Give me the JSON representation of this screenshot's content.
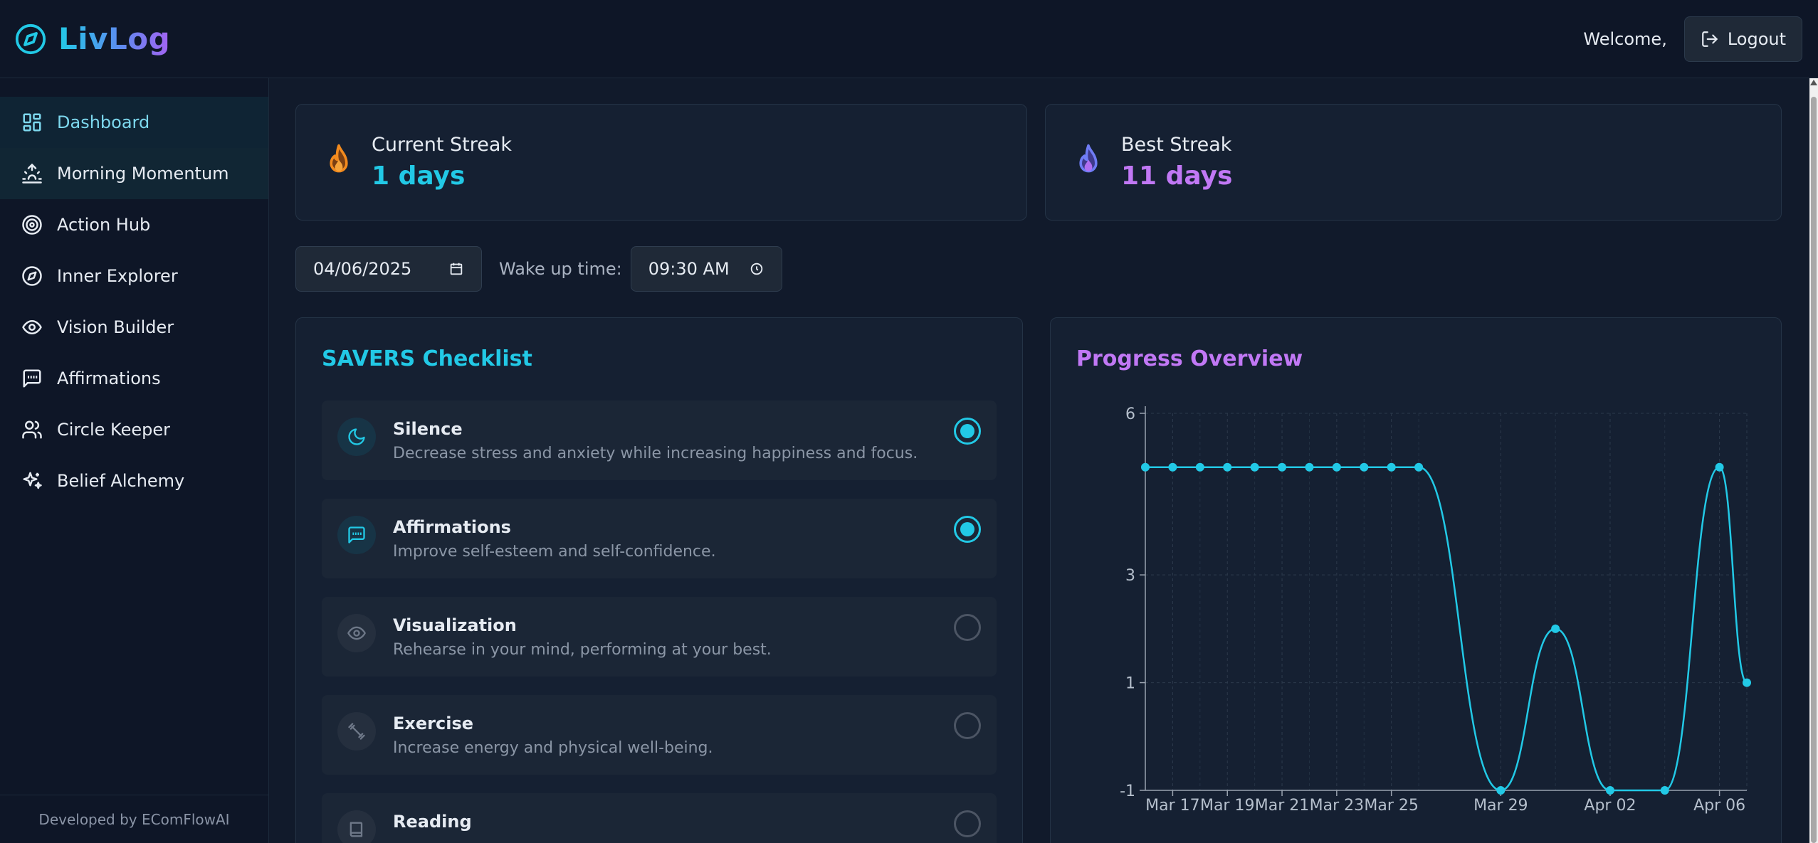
{
  "header": {
    "app_name": "LivLog",
    "welcome": "Welcome,",
    "logout_label": "Logout",
    "logo_icon": "compass-icon",
    "logout_icon": "logout-icon"
  },
  "sidebar": {
    "items": [
      {
        "label": "Dashboard",
        "icon": "dashboard-icon",
        "state": "active"
      },
      {
        "label": "Morning Momentum",
        "icon": "sunrise-icon",
        "state": "hover"
      },
      {
        "label": "Action Hub",
        "icon": "target-icon",
        "state": ""
      },
      {
        "label": "Inner Explorer",
        "icon": "compass-icon",
        "state": ""
      },
      {
        "label": "Vision Builder",
        "icon": "eye-icon",
        "state": ""
      },
      {
        "label": "Affirmations",
        "icon": "message-quote-icon",
        "state": ""
      },
      {
        "label": "Circle Keeper",
        "icon": "users-icon",
        "state": ""
      },
      {
        "label": "Belief Alchemy",
        "icon": "sparkles-icon",
        "state": ""
      }
    ],
    "footer": "Developed by EComFlowAI"
  },
  "streaks": {
    "current": {
      "label": "Current Streak",
      "value": "1 days",
      "color": "#22c9e6",
      "icon": "flame-icon"
    },
    "best": {
      "label": "Best Streak",
      "value": "11 days",
      "color": "#c178f5",
      "icon": "flame-icon"
    }
  },
  "controls": {
    "date_value": "04/06/2025",
    "wake_label": "Wake up time:",
    "time_value": "09:30 AM"
  },
  "checklist": {
    "title": "SAVERS Checklist",
    "title_color": "#22c9e6",
    "items": [
      {
        "title": "Silence",
        "desc": "Decrease stress and anxiety while increasing happiness and focus.",
        "checked": true,
        "icon": "moon-icon"
      },
      {
        "title": "Affirmations",
        "desc": "Improve self-esteem and self-confidence.",
        "checked": true,
        "icon": "message-quote-icon"
      },
      {
        "title": "Visualization",
        "desc": "Rehearse in your mind, performing at your best.",
        "checked": false,
        "icon": "eye-icon"
      },
      {
        "title": "Exercise",
        "desc": "Increase energy and physical well-being.",
        "checked": false,
        "icon": "dumbbell-icon"
      },
      {
        "title": "Reading",
        "desc": "",
        "checked": false,
        "icon": "book-icon"
      }
    ]
  },
  "progress": {
    "title": "Progress Overview",
    "title_color": "#c178f5"
  },
  "chart_data": {
    "type": "line",
    "title": "Progress Overview",
    "xlabel": "",
    "ylabel": "",
    "x_ticks": [
      "Mar 17",
      "Mar 19",
      "Mar 21",
      "Mar 23",
      "Mar 25",
      "Mar 29",
      "Apr 02",
      "Apr 06"
    ],
    "y_ticks": [
      -1,
      1,
      3,
      6
    ],
    "ylim": [
      -1,
      6
    ],
    "grid": true,
    "line_color": "#22c9e6",
    "series": [
      {
        "x": [
          "Mar 16",
          "Mar 17",
          "Mar 18",
          "Mar 19",
          "Mar 20",
          "Mar 21",
          "Mar 22",
          "Mar 23",
          "Mar 24",
          "Mar 25",
          "Mar 26",
          "Mar 29",
          "Mar 31",
          "Apr 02",
          "Apr 04",
          "Apr 06",
          "Apr 07"
        ],
        "values": [
          5,
          5,
          5,
          5,
          5,
          5,
          5,
          5,
          5,
          5,
          5,
          -1,
          2,
          -1,
          -1,
          5,
          1
        ]
      }
    ]
  }
}
